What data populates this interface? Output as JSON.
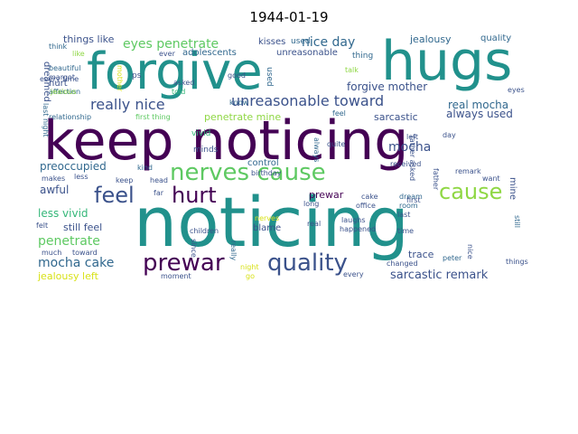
{
  "title": "1944-01-19",
  "colors": {
    "dark_purple": "#440154",
    "indigo": "#3b528b",
    "blue": "#31688e",
    "teal": "#21918c",
    "green": "#35b779",
    "light_green": "#8fd744",
    "yellow": "#d8e219",
    "pale": "#a0da39"
  },
  "words": [
    {
      "text": "keep noticing",
      "color": "#440154"
    },
    {
      "text": "noticing",
      "color": "#21918c"
    },
    {
      "text": "forgive",
      "color": "#21918c"
    },
    {
      "text": "hugs",
      "color": "#21918c"
    },
    {
      "text": "nerves cause",
      "color": "#5ec962"
    },
    {
      "text": "prewar",
      "color": "#440154"
    },
    {
      "text": "quality",
      "color": "#3b528b"
    },
    {
      "text": "feel",
      "color": "#3b528b"
    },
    {
      "text": "hurt",
      "color": "#440154"
    },
    {
      "text": "cause",
      "color": "#8fd744"
    },
    {
      "text": "really nice",
      "color": "#3b528b"
    },
    {
      "text": "unreasonable toward",
      "color": "#3b528b"
    },
    {
      "text": "eyes penetrate",
      "color": "#5ec962"
    },
    {
      "text": "nice day",
      "color": "#31688e"
    },
    {
      "text": "mocha cake",
      "color": "#31688e"
    },
    {
      "text": "penetrate",
      "color": "#5ec962"
    },
    {
      "text": "mocha",
      "color": "#3b528b"
    },
    {
      "text": "sarcastic remark",
      "color": "#3b528b"
    },
    {
      "text": "preoccupied",
      "color": "#31688e"
    },
    {
      "text": "forgive mother",
      "color": "#3b528b"
    },
    {
      "text": "real mocha",
      "color": "#31688e"
    },
    {
      "text": "always used",
      "color": "#3b528b"
    },
    {
      "text": "sarcastic",
      "color": "#3b528b"
    },
    {
      "text": "penetrate mine",
      "color": "#8fd744"
    },
    {
      "text": "less vivid",
      "color": "#35b779"
    },
    {
      "text": "still feel",
      "color": "#3b528b"
    },
    {
      "text": "awful",
      "color": "#3b528b"
    },
    {
      "text": "prewar",
      "color": "#440154"
    },
    {
      "text": "trace",
      "color": "#3b528b"
    },
    {
      "text": "jealousy left",
      "color": "#d8e219"
    },
    {
      "text": "things like",
      "color": "#3b528b"
    },
    {
      "text": "jealousy",
      "color": "#31688e"
    },
    {
      "text": "quality",
      "color": "#31688e"
    },
    {
      "text": "kisses",
      "color": "#3b528b"
    },
    {
      "text": "used",
      "color": "#31688e"
    },
    {
      "text": "adolescents",
      "color": "#31688e"
    },
    {
      "text": "unreasonable",
      "color": "#3b528b"
    },
    {
      "text": "thing",
      "color": "#31688e"
    },
    {
      "text": "dreamed",
      "color": "#3b528b"
    },
    {
      "text": "hurt",
      "color": "#3b528b"
    },
    {
      "text": "affection",
      "color": "#31688e"
    },
    {
      "text": "beautiful",
      "color": "#31688e"
    },
    {
      "text": "margot",
      "color": "#3b528b"
    },
    {
      "text": "jealous",
      "color": "#8fd744"
    },
    {
      "text": "relationship",
      "color": "#31688e"
    },
    {
      "text": "last night",
      "color": "#31688e"
    },
    {
      "text": "think",
      "color": "#31688e"
    },
    {
      "text": "like",
      "color": "#8fd744"
    },
    {
      "text": "ever",
      "color": "#3b528b"
    },
    {
      "text": "asked",
      "color": "#3b528b"
    },
    {
      "text": "ps",
      "color": "#3b528b"
    },
    {
      "text": "told",
      "color": "#35b779"
    },
    {
      "text": "good",
      "color": "#3b528b"
    },
    {
      "text": "know",
      "color": "#31688e"
    },
    {
      "text": "used",
      "color": "#31688e"
    },
    {
      "text": "talk",
      "color": "#8fd744"
    },
    {
      "text": "mother",
      "color": "#d8e219"
    },
    {
      "text": "first thing",
      "color": "#5ec962"
    },
    {
      "text": "feel",
      "color": "#31688e"
    },
    {
      "text": "vivid",
      "color": "#35b779"
    },
    {
      "text": "minds",
      "color": "#3b528b"
    },
    {
      "text": "kind",
      "color": "#31688e"
    },
    {
      "text": "makes",
      "color": "#3b528b"
    },
    {
      "text": "less",
      "color": "#3b528b"
    },
    {
      "text": "every time",
      "color": "#3b528b"
    },
    {
      "text": "felt",
      "color": "#3b528b"
    },
    {
      "text": "much",
      "color": "#3b528b"
    },
    {
      "text": "toward",
      "color": "#3b528b"
    },
    {
      "text": "keep",
      "color": "#3b528b"
    },
    {
      "text": "head",
      "color": "#3b528b"
    },
    {
      "text": "far",
      "color": "#3b528b"
    },
    {
      "text": "children",
      "color": "#3b528b"
    },
    {
      "text": "moment",
      "color": "#3b528b"
    },
    {
      "text": "since",
      "color": "#3b528b"
    },
    {
      "text": "control",
      "color": "#31688e"
    },
    {
      "text": "birthday",
      "color": "#3b528b"
    },
    {
      "text": "blame",
      "color": "#3b528b"
    },
    {
      "text": "nerves",
      "color": "#d8e219"
    },
    {
      "text": "really",
      "color": "#31688e"
    },
    {
      "text": "night",
      "color": "#d8e219"
    },
    {
      "text": "go",
      "color": "#d8e219"
    },
    {
      "text": "long",
      "color": "#3b528b"
    },
    {
      "text": "real",
      "color": "#3b528b"
    },
    {
      "text": "always",
      "color": "#31688e"
    },
    {
      "text": "quite",
      "color": "#3b528b"
    },
    {
      "text": "office",
      "color": "#3b528b"
    },
    {
      "text": "cake",
      "color": "#3b528b"
    },
    {
      "text": "dream",
      "color": "#31688e"
    },
    {
      "text": "room",
      "color": "#31688e"
    },
    {
      "text": "first",
      "color": "#3b528b"
    },
    {
      "text": "last",
      "color": "#3b528b"
    },
    {
      "text": "laughs",
      "color": "#3b528b"
    },
    {
      "text": "happened",
      "color": "#3b528b"
    },
    {
      "text": "time",
      "color": "#3b528b"
    },
    {
      "text": "changed",
      "color": "#3b528b"
    },
    {
      "text": "every",
      "color": "#3b528b"
    },
    {
      "text": "received",
      "color": "#3b528b"
    },
    {
      "text": "left",
      "color": "#3b528b"
    },
    {
      "text": "day",
      "color": "#3b528b"
    },
    {
      "text": "remark",
      "color": "#3b528b"
    },
    {
      "text": "want",
      "color": "#3b528b"
    },
    {
      "text": "father",
      "color": "#3b528b"
    },
    {
      "text": "father asked",
      "color": "#3b528b"
    },
    {
      "text": "peter",
      "color": "#31688e"
    },
    {
      "text": "nice",
      "color": "#3b528b"
    },
    {
      "text": "things",
      "color": "#3b528b"
    },
    {
      "text": "eyes",
      "color": "#3b528b"
    },
    {
      "text": "mine",
      "color": "#3b528b"
    },
    {
      "text": "still",
      "color": "#31688e"
    }
  ]
}
